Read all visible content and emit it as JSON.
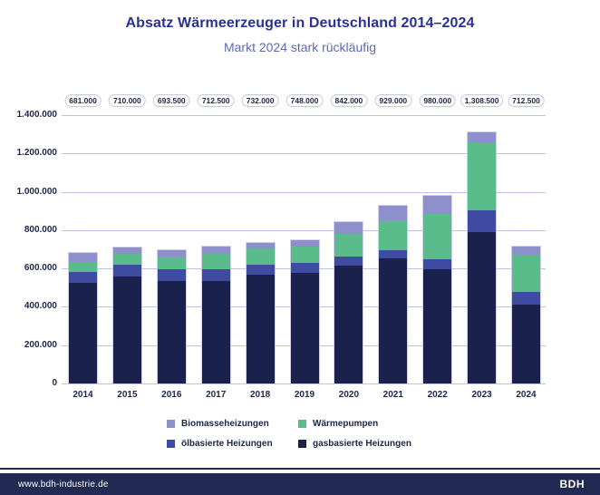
{
  "header": {
    "title": "Absatz Wärmeerzeuger in Deutschland 2014–2024",
    "subtitle": "Markt 2024 stark rückläufig"
  },
  "chart_data": {
    "type": "bar",
    "stacked": true,
    "title": "Absatz Wärmeerzeuger in Deutschland 2014–2024",
    "subtitle": "Markt 2024 stark rückläufig",
    "xlabel": "",
    "ylabel": "",
    "ylim": [
      0,
      1400000
    ],
    "grid": "horizontal",
    "legend_position": "bottom",
    "categories": [
      "2014",
      "2015",
      "2016",
      "2017",
      "2018",
      "2019",
      "2020",
      "2021",
      "2022",
      "2023",
      "2024"
    ],
    "series": [
      {
        "name": "gasbasierte Heizungen",
        "color": "#1b214d",
        "values": [
          524500,
          558000,
          534000,
          535500,
          567000,
          576000,
          615500,
          653000,
          598000,
          790500,
          413500
        ]
      },
      {
        "name": "ölbasierte Heizungen",
        "color": "#3e4ba1",
        "values": [
          55500,
          63500,
          62000,
          61500,
          52500,
          52000,
          44500,
          42500,
          50000,
          112500,
          66500
        ]
      },
      {
        "name": "Wärmepumpen",
        "color": "#5abc8a",
        "values": [
          55500,
          57000,
          66500,
          78000,
          84000,
          86000,
          120000,
          154000,
          236000,
          356000,
          193000
        ]
      },
      {
        "name": "Biomasseheizungen",
        "color": "#8e90cb",
        "values": [
          45500,
          31500,
          31000,
          37500,
          28500,
          34000,
          62000,
          79500,
          96000,
          49500,
          39500
        ]
      }
    ],
    "totals": [
      {
        "label": "681.000",
        "value": 681000
      },
      {
        "label": "710.000",
        "value": 710000
      },
      {
        "label": "693.500",
        "value": 693500
      },
      {
        "label": "712.500",
        "value": 712500
      },
      {
        "label": "732.000",
        "value": 732000
      },
      {
        "label": "748.000",
        "value": 748000
      },
      {
        "label": "842.000",
        "value": 842000
      },
      {
        "label": "929.000",
        "value": 929000
      },
      {
        "label": "980.000",
        "value": 980000
      },
      {
        "label": "1.308.500",
        "value": 1308500
      },
      {
        "label": "712.500",
        "value": 712500
      }
    ],
    "yticks": [
      {
        "label": "1.400.000",
        "value": 1400000
      },
      {
        "label": "1.200.000",
        "value": 1200000
      },
      {
        "label": "1.000.000",
        "value": 1000000
      },
      {
        "label": "800.000",
        "value": 800000
      },
      {
        "label": "600.000",
        "value": 600000
      },
      {
        "label": "400.000",
        "value": 400000
      },
      {
        "label": "200.000",
        "value": 200000
      },
      {
        "label": "0",
        "value": 0
      }
    ]
  },
  "legend": {
    "items": [
      {
        "label": "Biomasseheizungen",
        "color": "#8e90cb"
      },
      {
        "label": "Wärmepumpen",
        "color": "#5abc8a"
      },
      {
        "label": "ölbasierte Heizungen",
        "color": "#3e4ba1"
      },
      {
        "label": "gasbasierte Heizungen",
        "color": "#1b214d"
      }
    ]
  },
  "footer": {
    "url": "www.bdh-industrie.de",
    "logo": "BDH"
  },
  "colors": {
    "title": "#2b3192",
    "subtitle": "#6069ae",
    "axis_text": "#1d2547",
    "gridline": "#bcc2e4",
    "pill_border": "#c5c9e5",
    "footer_bg": "#222a54"
  }
}
